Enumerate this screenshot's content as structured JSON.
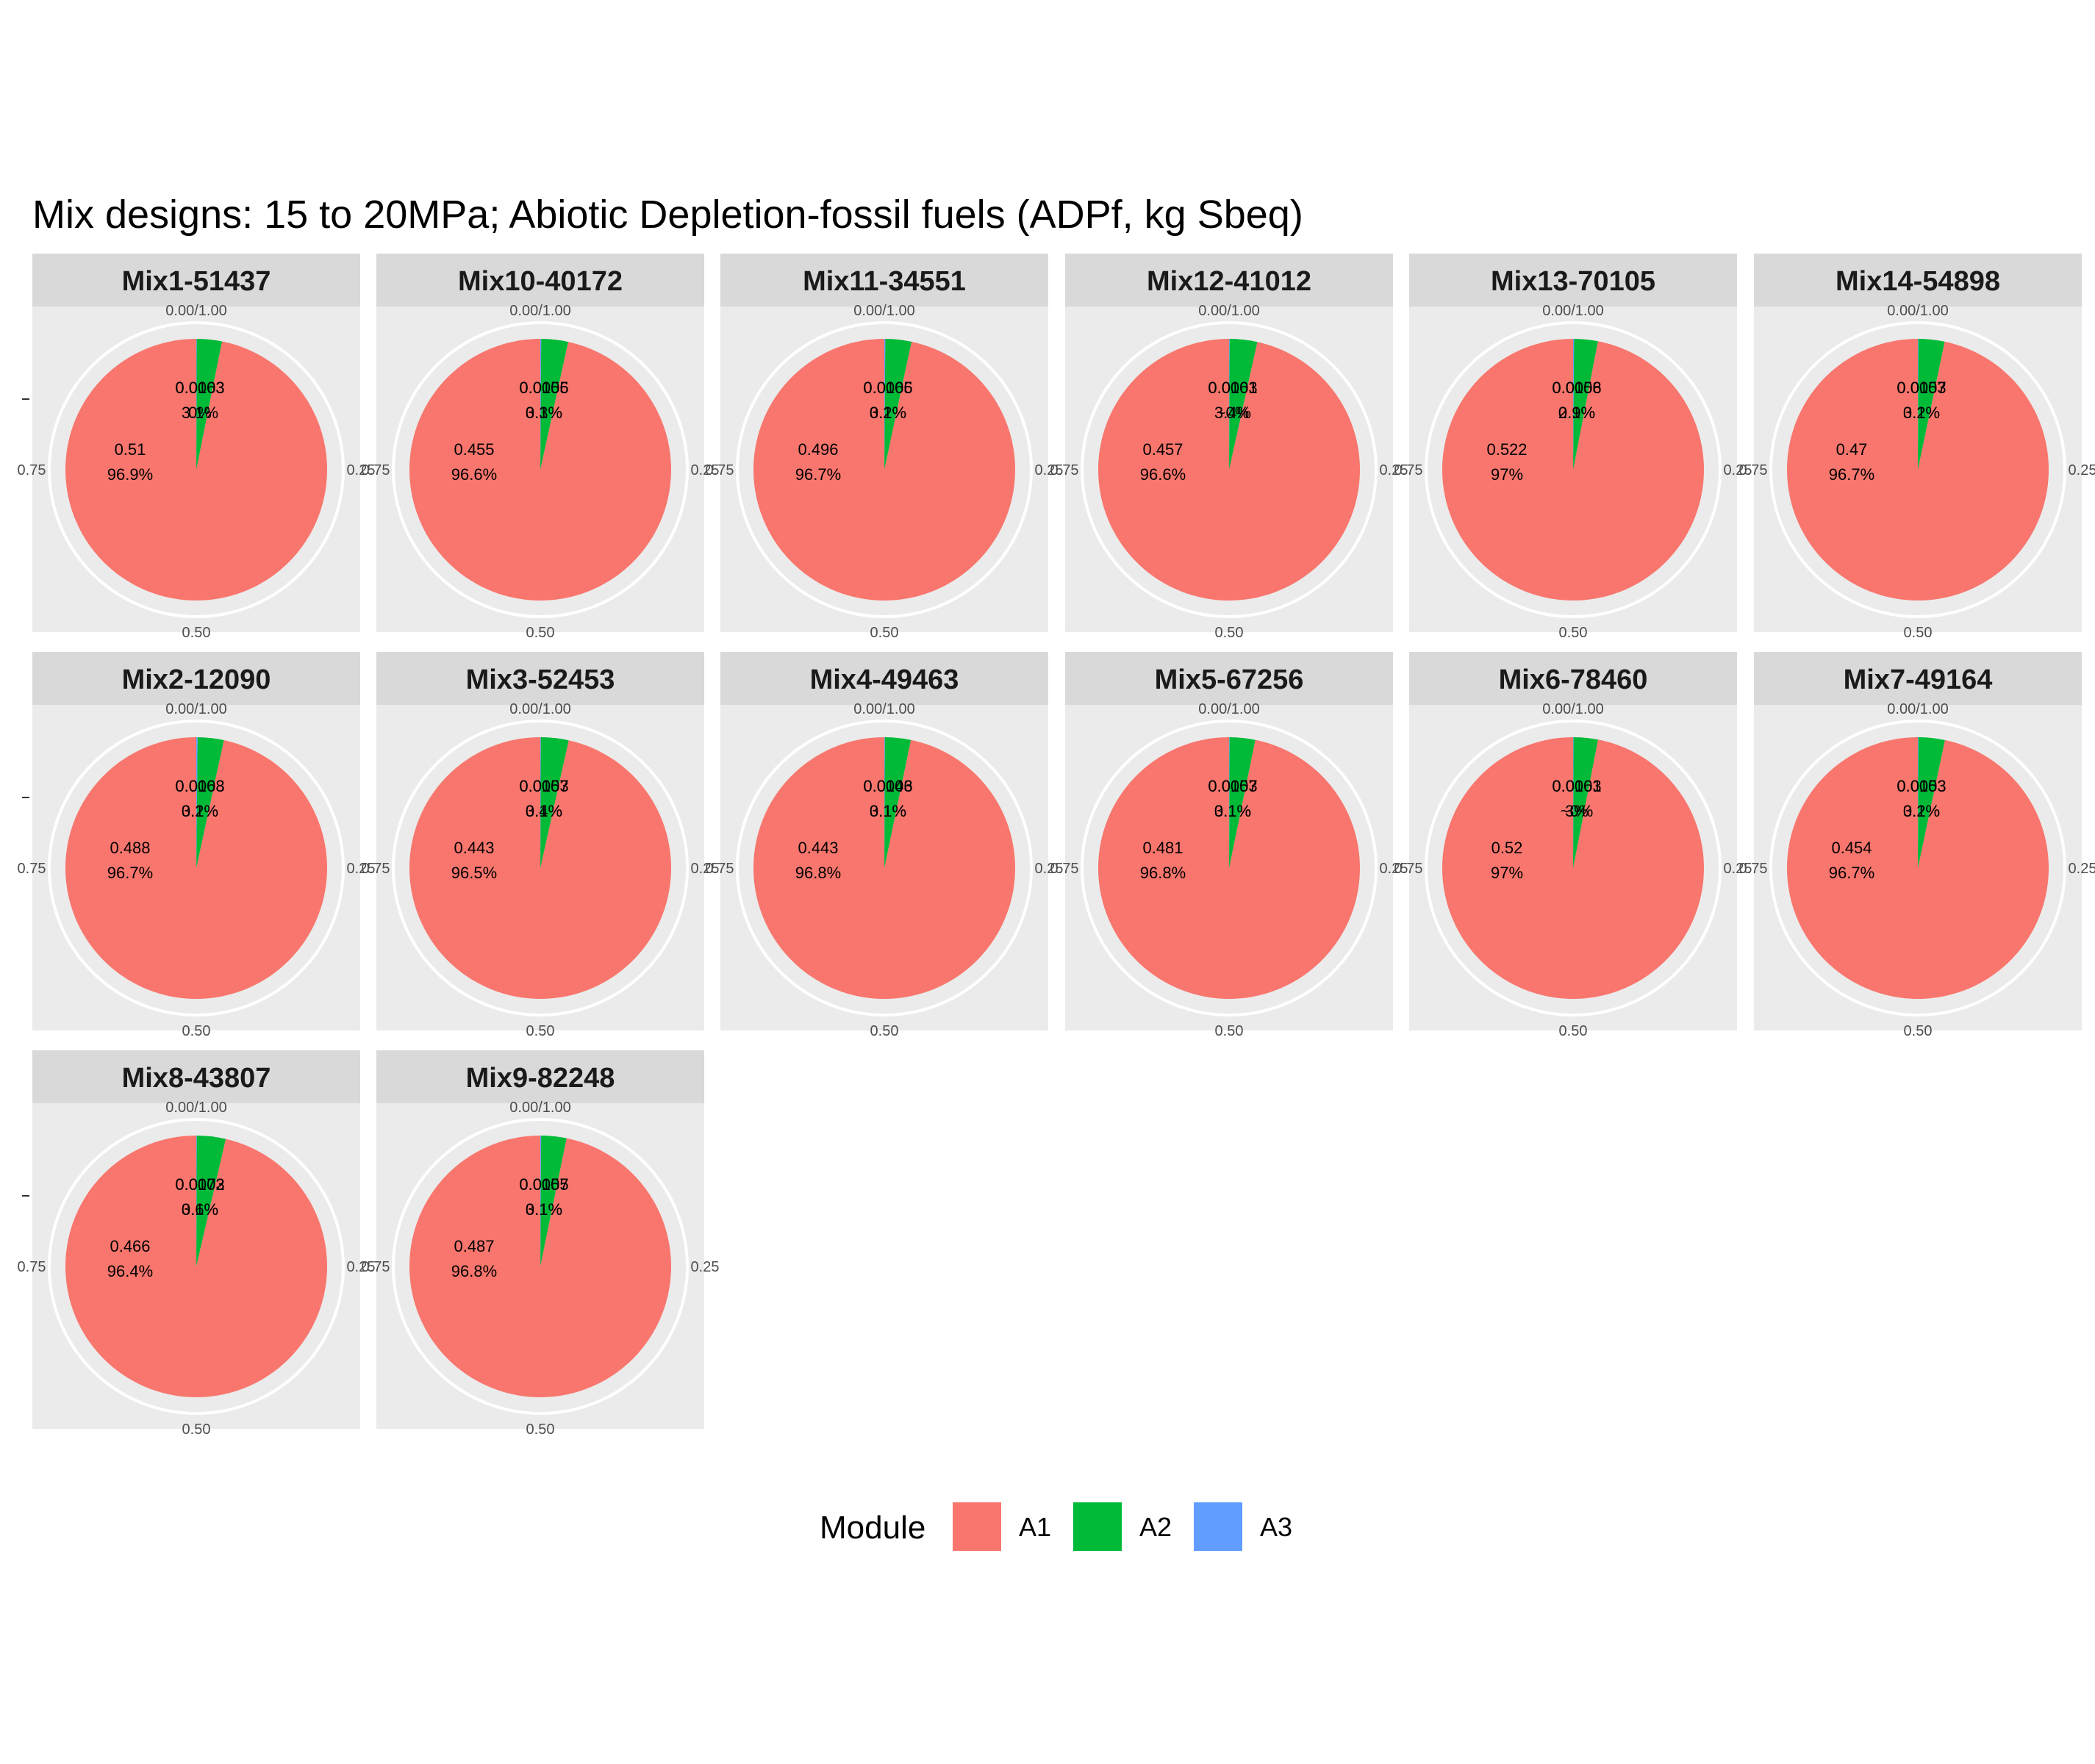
{
  "chart_data": {
    "type": "pie",
    "title": "Mix designs: 15 to 20MPa; Abiotic Depletion-fossil fuels (ADPf, kg Sbeq)",
    "angular_ticks": [
      "0.00/1.00",
      "0.25",
      "0.50",
      "0.75"
    ],
    "legend": {
      "title": "Module",
      "position": "bottom",
      "entries": [
        {
          "name": "A1",
          "color": "#F8766D"
        },
        {
          "name": "A2",
          "color": "#00BA38"
        },
        {
          "name": "A3",
          "color": "#619CFF"
        }
      ]
    },
    "panels": [
      {
        "name": "Mix1-51437",
        "slices": [
          {
            "module": "A1",
            "value": 0.51,
            "pct": "96.9%"
          },
          {
            "module": "A2",
            "value": 0.0163,
            "pct": "3.1%"
          },
          {
            "module": "A3",
            "value": 0.0003,
            "pct": "0%"
          }
        ],
        "labels": [
          {
            "line1": "0.51",
            "line2": "96.9%"
          },
          {
            "line1": "0.0163",
            "line2": "3.1%"
          },
          {
            "line1": "0.0003",
            "line2": "0%"
          }
        ]
      },
      {
        "name": "Mix10-40172",
        "slices": [
          {
            "module": "A1",
            "value": 0.455,
            "pct": "96.6%"
          },
          {
            "module": "A2",
            "value": 0.0156,
            "pct": "3.3%"
          },
          {
            "module": "A3",
            "value": 0.0005,
            "pct": "0.1%"
          }
        ],
        "labels": [
          {
            "line1": "0.455",
            "line2": "96.6%"
          },
          {
            "line1": "0.0156",
            "line2": "3.3%"
          },
          {
            "line1": "0.0005",
            "line2": "0.1%"
          }
        ]
      },
      {
        "name": "Mix11-34551",
        "slices": [
          {
            "module": "A1",
            "value": 0.496,
            "pct": "96.7%"
          },
          {
            "module": "A2",
            "value": 0.0165,
            "pct": "3.2%"
          },
          {
            "module": "A3",
            "value": 0.0006,
            "pct": "0.1%"
          }
        ],
        "labels": [
          {
            "line1": "0.496",
            "line2": "96.7%"
          },
          {
            "line1": "0.0165",
            "line2": "3.2%"
          },
          {
            "line1": "0.0006",
            "line2": "0.1%"
          }
        ]
      },
      {
        "name": "Mix12-41012",
        "slices": [
          {
            "module": "A1",
            "value": 0.457,
            "pct": "96.6%"
          },
          {
            "module": "A2",
            "value": 0.0161,
            "pct": "3.4%"
          },
          {
            "module": "A3",
            "value": 0.0003,
            "pct": "~0%"
          }
        ],
        "labels": [
          {
            "line1": "0.457",
            "line2": "96.6%"
          },
          {
            "line1": "0.0161",
            "line2": "3.4%"
          },
          {
            "line1": "0.0003",
            "line2": "~0%"
          }
        ]
      },
      {
        "name": "Mix13-70105",
        "slices": [
          {
            "module": "A1",
            "value": 0.522,
            "pct": "97%"
          },
          {
            "module": "A2",
            "value": 0.0158,
            "pct": "2.9%"
          },
          {
            "module": "A3",
            "value": 0.0006,
            "pct": "0.1%"
          }
        ],
        "labels": [
          {
            "line1": "0.522",
            "line2": "97%"
          },
          {
            "line1": "0.0158",
            "line2": "2.9%"
          },
          {
            "line1": "0.0006",
            "line2": "0.1%"
          }
        ]
      },
      {
        "name": "Mix14-54898",
        "slices": [
          {
            "module": "A1",
            "value": 0.47,
            "pct": "96.7%"
          },
          {
            "module": "A2",
            "value": 0.0157,
            "pct": "3.2%"
          },
          {
            "module": "A3",
            "value": 0.0003,
            "pct": "0.1%"
          }
        ],
        "labels": [
          {
            "line1": "0.47",
            "line2": "96.7%"
          },
          {
            "line1": "0.0157",
            "line2": "3.2%"
          },
          {
            "line1": "0.0003",
            "line2": "0.1%"
          }
        ]
      },
      {
        "name": "Mix2-12090",
        "slices": [
          {
            "module": "A1",
            "value": 0.488,
            "pct": "96.7%"
          },
          {
            "module": "A2",
            "value": 0.0163,
            "pct": "3.2%"
          },
          {
            "module": "A3",
            "value": 0.0008,
            "pct": "0.1%"
          }
        ],
        "labels": [
          {
            "line1": "0.488",
            "line2": "96.7%"
          },
          {
            "line1": "0.0163",
            "line2": "3.2%"
          },
          {
            "line1": "0.0008",
            "line2": "0.1%"
          }
        ]
      },
      {
        "name": "Mix3-52453",
        "slices": [
          {
            "module": "A1",
            "value": 0.443,
            "pct": "96.5%"
          },
          {
            "module": "A2",
            "value": 0.0157,
            "pct": "3.4%"
          },
          {
            "module": "A3",
            "value": 0.0003,
            "pct": "0.1%"
          }
        ],
        "labels": [
          {
            "line1": "0.443",
            "line2": "96.5%"
          },
          {
            "line1": "0.0157",
            "line2": "3.4%"
          },
          {
            "line1": "0.0003",
            "line2": "0.1%"
          }
        ]
      },
      {
        "name": "Mix4-49463",
        "slices": [
          {
            "module": "A1",
            "value": 0.443,
            "pct": "96.8%"
          },
          {
            "module": "A2",
            "value": 0.0146,
            "pct": "3.1%"
          },
          {
            "module": "A3",
            "value": 0.0003,
            "pct": "0.1%"
          }
        ],
        "labels": [
          {
            "line1": "0.443",
            "line2": "96.8%"
          },
          {
            "line1": "0.0146",
            "line2": "3.1%"
          },
          {
            "line1": "0.0003",
            "line2": "0.1%"
          }
        ]
      },
      {
        "name": "Mix5-67256",
        "slices": [
          {
            "module": "A1",
            "value": 0.481,
            "pct": "96.8%"
          },
          {
            "module": "A2",
            "value": 0.0157,
            "pct": "3.1%"
          },
          {
            "module": "A3",
            "value": 0.0003,
            "pct": "0.1%"
          }
        ],
        "labels": [
          {
            "line1": "0.481",
            "line2": "96.8%"
          },
          {
            "line1": "0.0157",
            "line2": "3.1%"
          },
          {
            "line1": "0.0003",
            "line2": "0.1%"
          }
        ]
      },
      {
        "name": "Mix6-78460",
        "slices": [
          {
            "module": "A1",
            "value": 0.52,
            "pct": "97%"
          },
          {
            "module": "A2",
            "value": 0.0161,
            "pct": "3%"
          },
          {
            "module": "A3",
            "value": 0.0003,
            "pct": "~0%"
          }
        ],
        "labels": [
          {
            "line1": "0.52",
            "line2": "97%"
          },
          {
            "line1": "0.0161",
            "line2": "3%"
          },
          {
            "line1": "0.0003",
            "line2": "~0%"
          }
        ]
      },
      {
        "name": "Mix7-49164",
        "slices": [
          {
            "module": "A1",
            "value": 0.454,
            "pct": "96.7%"
          },
          {
            "module": "A2",
            "value": 0.0153,
            "pct": "3.2%"
          },
          {
            "module": "A3",
            "value": 0.0003,
            "pct": "0.1%"
          }
        ],
        "labels": [
          {
            "line1": "0.454",
            "line2": "96.7%"
          },
          {
            "line1": "0.0153",
            "line2": "3.2%"
          },
          {
            "line1": "0.0003",
            "line2": "0.1%"
          }
        ]
      },
      {
        "name": "Mix8-43807",
        "slices": [
          {
            "module": "A1",
            "value": 0.466,
            "pct": "96.4%"
          },
          {
            "module": "A2",
            "value": 0.0172,
            "pct": "3.6%"
          },
          {
            "module": "A3",
            "value": 0.0003,
            "pct": "0.1%"
          }
        ],
        "labels": [
          {
            "line1": "0.466",
            "line2": "96.4%"
          },
          {
            "line1": "0.0172",
            "line2": "3.6%"
          },
          {
            "line1": "0.0003",
            "line2": "0.1%"
          }
        ]
      },
      {
        "name": "Mix9-82248",
        "slices": [
          {
            "module": "A1",
            "value": 0.487,
            "pct": "96.8%"
          },
          {
            "module": "A2",
            "value": 0.0157,
            "pct": "3.1%"
          },
          {
            "module": "A3",
            "value": 0.0005,
            "pct": "0.1%"
          }
        ],
        "labels": [
          {
            "line1": "0.487",
            "line2": "96.8%"
          },
          {
            "line1": "0.0157",
            "line2": "3.1%"
          },
          {
            "line1": "0.0005",
            "line2": "0.1%"
          }
        ]
      }
    ]
  }
}
